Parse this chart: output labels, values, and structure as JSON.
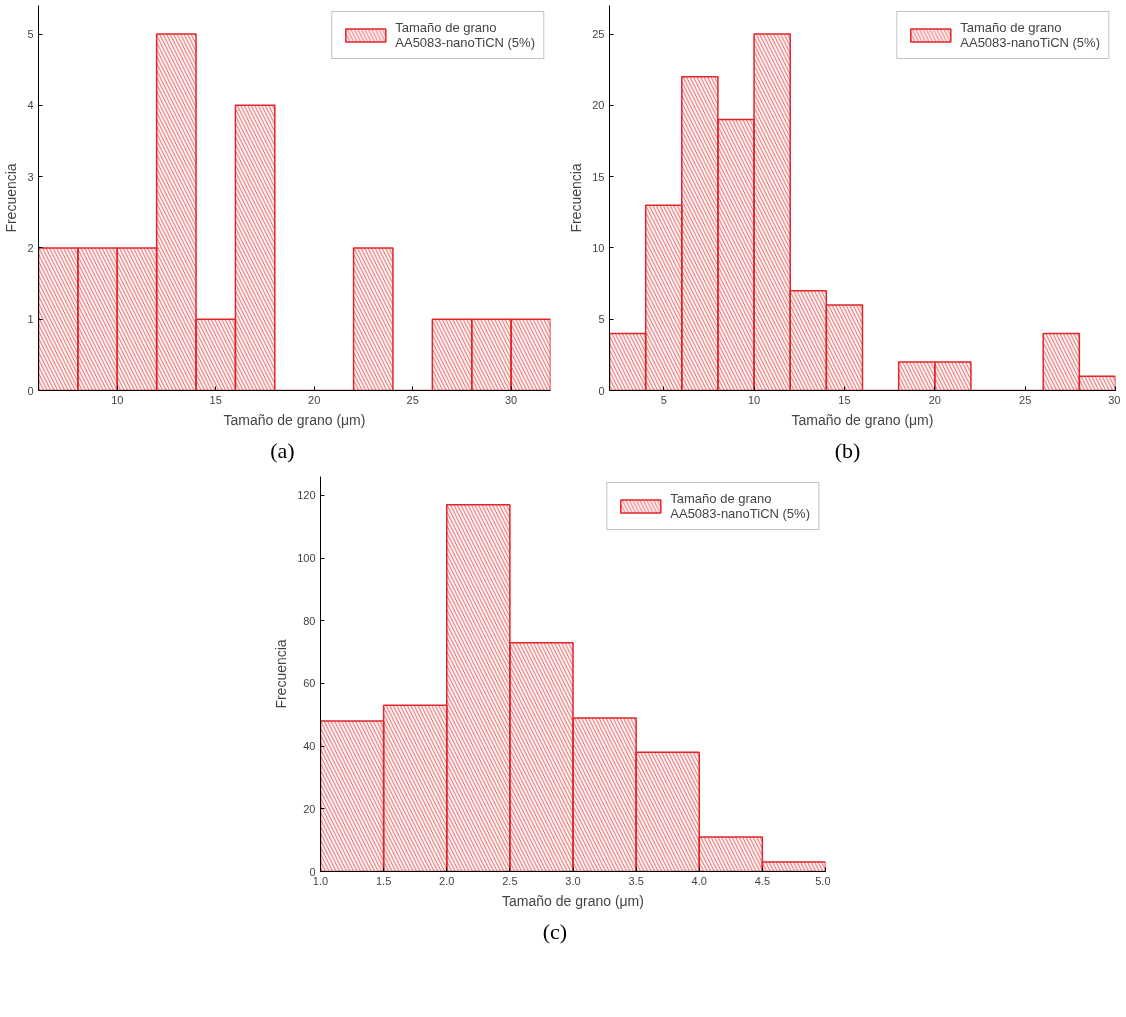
{
  "chart_data": [
    {
      "type": "histogram",
      "xlabel": "Tamaño de grano (μm)",
      "ylabel": "Frecuencia",
      "annotations": [
        "(a)"
      ],
      "bins": [
        6,
        8,
        10,
        12,
        14,
        16,
        18,
        20,
        22,
        24,
        26,
        28,
        30,
        32
      ],
      "series": [
        {
          "name": "Tamaño de grano\nAA5083-nanoTiCN (5%)",
          "color": "#e0262b",
          "values": [
            2,
            2,
            2,
            5,
            1,
            4,
            0,
            0,
            2,
            0,
            1,
            1,
            1
          ]
        }
      ],
      "xlim": [
        6,
        32
      ],
      "xticks": [
        10,
        15,
        20,
        25,
        30
      ],
      "ylim": [
        0,
        5.4
      ],
      "yticks": [
        0,
        1,
        2,
        3,
        4,
        5
      ],
      "legend": "top right",
      "grid": false
    },
    {
      "type": "histogram",
      "xlabel": "Tamaño de grano (μm)",
      "ylabel": "Frecuencia",
      "annotations": [
        "(b)"
      ],
      "bins": [
        2,
        4,
        6,
        8,
        10,
        12,
        14,
        16,
        18,
        20,
        22,
        24,
        26,
        28,
        30
      ],
      "series": [
        {
          "name": "Tamaño de grano\nAA5083-nanoTiCN (5%)",
          "color": "#e0262b",
          "values": [
            4,
            13,
            22,
            19,
            25,
            7,
            6,
            0,
            2,
            2,
            0,
            0,
            4,
            1
          ]
        }
      ],
      "xlim": [
        2,
        30
      ],
      "xticks": [
        5,
        10,
        15,
        20,
        25,
        30
      ],
      "ylim": [
        0,
        27
      ],
      "yticks": [
        0,
        5,
        10,
        15,
        20,
        25
      ],
      "legend": "top right",
      "grid": false
    },
    {
      "type": "histogram",
      "xlabel": "Tamaño de grano (μm)",
      "ylabel": "Frecuencia",
      "annotations": [
        "(c)"
      ],
      "bins": [
        1.0,
        1.5,
        2.0,
        2.5,
        3.0,
        3.5,
        4.0,
        4.5,
        5.0
      ],
      "series": [
        {
          "name": "Tamaño de grano\nAA5083-nanoTiCN (5%)",
          "color": "#e0262b",
          "values": [
            48,
            53,
            117,
            73,
            49,
            38,
            11,
            3
          ]
        }
      ],
      "xlim": [
        1,
        5
      ],
      "xticks": [
        {
          "value": 1,
          "label": "1.0"
        },
        {
          "value": 1.5,
          "label": "1.5"
        },
        {
          "value": 2,
          "label": "2.0"
        },
        {
          "value": 2.5,
          "label": "2.5"
        },
        {
          "value": 3,
          "label": "3.0"
        },
        {
          "value": 3.5,
          "label": "3.5"
        },
        {
          "value": 4,
          "label": "4.0"
        },
        {
          "value": 4.5,
          "label": "4.5"
        },
        {
          "value": 5,
          "label": "5.0"
        }
      ],
      "ylim": [
        0,
        126
      ],
      "yticks": [
        0,
        20,
        40,
        60,
        80,
        100,
        120
      ],
      "legend": "top right",
      "grid": false
    }
  ]
}
